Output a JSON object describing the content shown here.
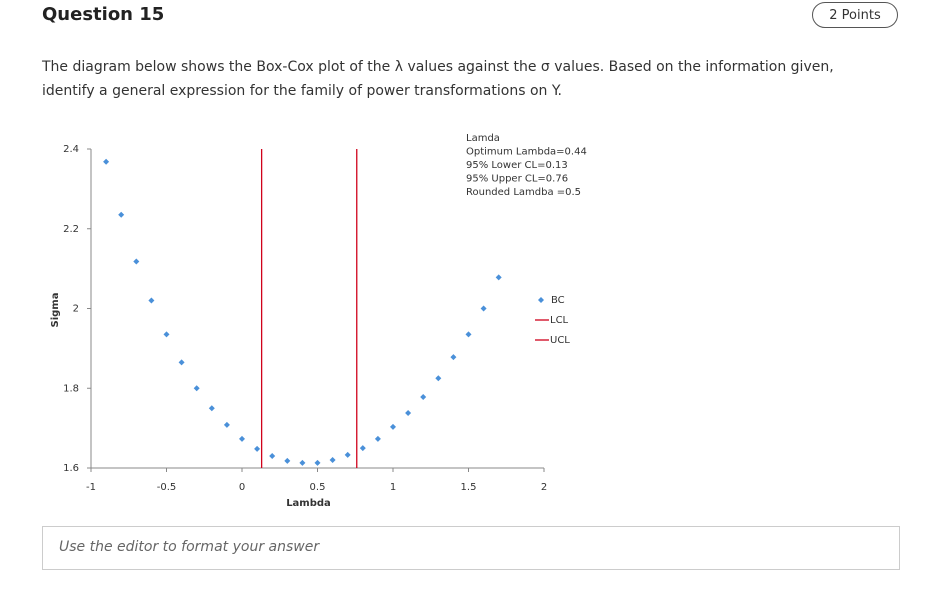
{
  "header": {
    "title": "Question 15",
    "points": "2 Points"
  },
  "question": {
    "text": "The diagram below shows the Box-Cox plot of the λ values against the σ values. Based on the information given, identify a general expression for the family of power transformations on Y."
  },
  "chart_data": {
    "type": "scatter",
    "x_label": "Lambda",
    "y_label": "Sigma",
    "annotations": [
      "Lamda",
      "Optimum Lambda=0.44",
      "95% Lower CL=0.13",
      "95% Upper CL=0.76",
      "Rounded Lamdba =0.5"
    ],
    "xlim": [
      -1,
      2
    ],
    "xticks": [
      -1,
      -0.5,
      0,
      0.5,
      1,
      1.5,
      2
    ],
    "ylim": [
      1.6,
      2.4
    ],
    "yticks": [
      1.6,
      1.8,
      2,
      2.2,
      2.4
    ],
    "grid": false,
    "legend": "right",
    "series": [
      {
        "name": "BC",
        "color": "#4a90d9",
        "mode": "markers",
        "x": [
          -0.9,
          -0.8,
          -0.7,
          -0.6,
          -0.5,
          -0.4,
          -0.3,
          -0.2,
          -0.1,
          0,
          0.1,
          0.2,
          0.3,
          0.4,
          0.5,
          0.6,
          0.7,
          0.8,
          0.9,
          1,
          1.1,
          1.2,
          1.3,
          1.4,
          1.5,
          1.6,
          1.7
        ],
        "values": [
          2.368,
          2.235,
          2.118,
          2.02,
          1.935,
          1.865,
          1.8,
          1.75,
          1.708,
          1.673,
          1.648,
          1.63,
          1.618,
          1.613,
          1.613,
          1.62,
          1.633,
          1.65,
          1.673,
          1.703,
          1.738,
          1.778,
          1.825,
          1.878,
          1.935,
          2.0,
          2.078
        ]
      },
      {
        "name": "LCL",
        "color": "#d0021b",
        "mode": "line",
        "x": [
          0.13,
          0.13
        ],
        "values": [
          1.6,
          2.4
        ]
      },
      {
        "name": "UCL",
        "color": "#d0021b",
        "mode": "line",
        "x": [
          0.76,
          0.76
        ],
        "values": [
          1.6,
          2.4
        ]
      }
    ]
  },
  "answer": {
    "placeholder": "Use the editor to format your answer"
  }
}
